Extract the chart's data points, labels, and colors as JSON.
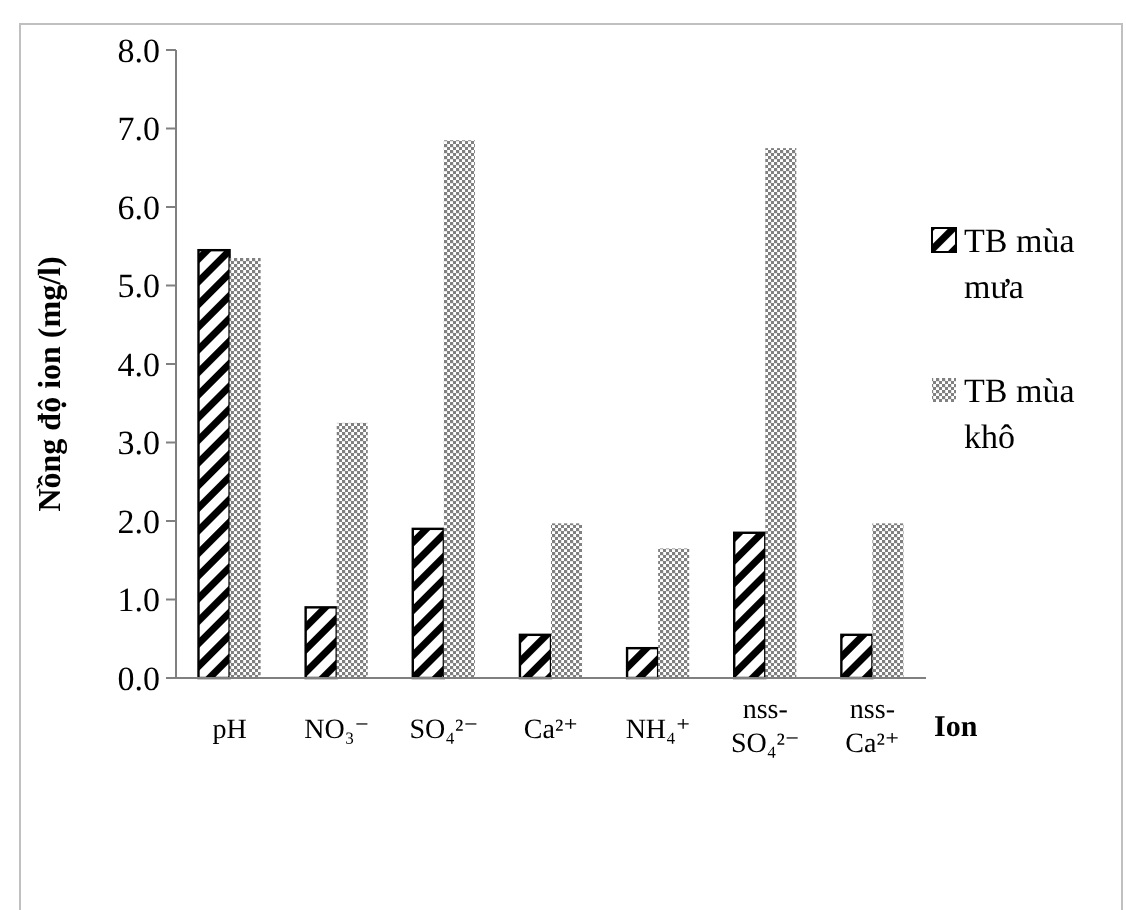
{
  "chart_data": {
    "type": "bar",
    "xlabel": "Ion",
    "ylabel": "Nồng độ ion (mg/l)",
    "categories": [
      "pH",
      "NO₃⁻",
      "SO₄²⁻",
      "Ca²⁺",
      "NH₄⁺",
      "nss-SO₄²⁻",
      "nss-Ca²⁺"
    ],
    "series": [
      {
        "name": "TB mùa mưa",
        "color": "#000000",
        "values": [
          5.45,
          0.9,
          1.9,
          0.55,
          0.38,
          1.85,
          0.55
        ]
      },
      {
        "name": "TB mùa khô",
        "color": "#808080",
        "values": [
          5.35,
          3.25,
          6.85,
          1.97,
          1.65,
          6.75,
          1.97
        ]
      }
    ],
    "ylim": [
      0,
      8
    ],
    "yticks": [
      {
        "value": 0,
        "label": "0.0"
      },
      {
        "value": 1,
        "label": "1.0"
      },
      {
        "value": 2,
        "label": "2.0"
      },
      {
        "value": 3,
        "label": "3.0"
      },
      {
        "value": 4,
        "label": "4.0"
      },
      {
        "value": 5,
        "label": "5.0"
      },
      {
        "value": 6,
        "label": "6.0"
      },
      {
        "value": 7,
        "label": "7.0"
      },
      {
        "value": 8,
        "label": "8.0"
      }
    ],
    "grid": false,
    "legend": "right"
  }
}
